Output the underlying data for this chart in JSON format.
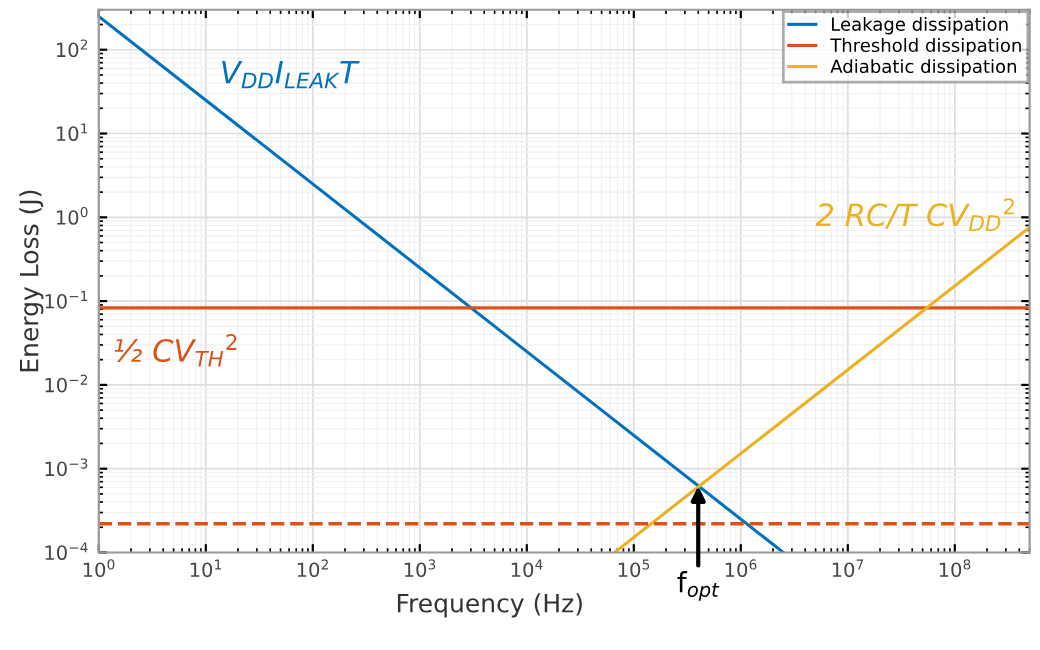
{
  "chart_data": {
    "type": "line",
    "xlabel": "Frequency (Hz)",
    "ylabel": "Energy Loss (J)",
    "log": "xy",
    "xlim": [
      1,
      500000000
    ],
    "ylim": [
      0.0001,
      300
    ],
    "xticks": [
      {
        "value": 1,
        "label": "10$^{0}$"
      },
      {
        "value": 10,
        "label": "10$^{1}$"
      },
      {
        "value": 100,
        "label": "10$^{2}$"
      },
      {
        "value": 1000,
        "label": "10$^{3}$"
      },
      {
        "value": 10000,
        "label": "10$^{4}$"
      },
      {
        "value": 100000,
        "label": "10$^{5}$"
      },
      {
        "value": 1000000,
        "label": "10$^{6}$"
      },
      {
        "value": 10000000,
        "label": "10$^{7}$"
      },
      {
        "value": 100000000,
        "label": "10$^{8}$"
      }
    ],
    "yticks": [
      {
        "value": 0.0001,
        "label": "10$^{−4}$"
      },
      {
        "value": 0.001,
        "label": "10$^{−3}$"
      },
      {
        "value": 0.01,
        "label": "10$^{−2}$"
      },
      {
        "value": 0.1,
        "label": "10$^{−1}$"
      },
      {
        "value": 1,
        "label": "10$^{0}$"
      },
      {
        "value": 10,
        "label": "10$^{1}$"
      },
      {
        "value": 100,
        "label": "10$^{2}$"
      }
    ],
    "grid": true,
    "legend": "top right",
    "marker": "none",
    "line_style": "solid",
    "series": [
      {
        "name": "Leakage dissipation",
        "color": "#0072bd",
        "x": [
          1,
          2500000
        ],
        "values": [
          250,
          0.0001
        ]
      },
      {
        "name": "Threshold dissipation",
        "color": "#d95319",
        "x": [
          1,
          500000000
        ],
        "values": [
          0.083,
          0.083
        ]
      },
      {
        "name": "Adiabatic dissipation",
        "color": "#edb120",
        "x": [
          66000,
          500000000
        ],
        "values": [
          0.0001,
          0.76
        ]
      }
    ],
    "ref_lines": [
      {
        "axis": "y",
        "value": 0.00022,
        "color": "#d95319",
        "line_style": "dashed"
      }
    ],
    "annotations": [
      "V$_{DD}$I$_{LEAK}$T",
      "½ CV$_{TH}$$^{2}$",
      "2 RC/T CV$_{DD}$$^{2}$",
      {
        "text": "f$_{opt}$",
        "x": 400000,
        "y": 0.00062
      }
    ]
  }
}
